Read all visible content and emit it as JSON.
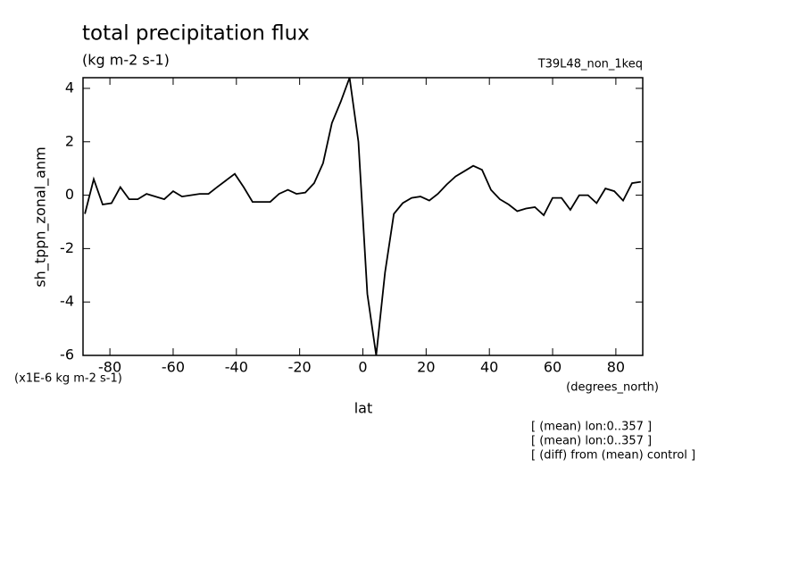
{
  "chart_data": {
    "type": "line",
    "title": "total precipitation flux",
    "subtitle": "(kg m-2 s-1)",
    "run_label": "T39L48_non_1keq",
    "ylabel": "sh_tppn_zonal_anm",
    "scale_label": "(x1E-6 kg m-2 s-1)",
    "xunits": "(degrees_north)",
    "xlabel": "lat",
    "annotations": [
      "[ (mean) lon:0..357 ]",
      "[ (mean) lon:0..357 ]",
      "[ (diff) from (mean) control ]"
    ],
    "x": [
      -87.9,
      -85.1,
      -82.3,
      -79.5,
      -76.7,
      -73.9,
      -71.2,
      -68.4,
      -65.6,
      -62.8,
      -60.0,
      -57.2,
      -54.4,
      -51.6,
      -48.8,
      -46.1,
      -43.3,
      -40.5,
      -37.7,
      -34.9,
      -32.1,
      -29.3,
      -26.5,
      -23.7,
      -21.0,
      -18.2,
      -15.4,
      -12.6,
      -9.8,
      -7.0,
      -4.2,
      -1.4,
      1.4,
      4.2,
      7.0,
      9.8,
      12.6,
      15.4,
      18.2,
      21.0,
      23.7,
      26.5,
      29.3,
      32.1,
      34.9,
      37.7,
      40.5,
      43.3,
      46.1,
      48.8,
      51.6,
      54.4,
      57.2,
      60.0,
      62.8,
      65.6,
      68.4,
      71.2,
      73.9,
      76.7,
      79.5,
      82.3,
      85.1,
      87.9
    ],
    "values": [
      -0.7,
      0.6,
      -0.35,
      -0.3,
      0.3,
      -0.15,
      -0.15,
      0.05,
      -0.05,
      -0.15,
      0.15,
      -0.05,
      0,
      0.05,
      0.05,
      0.3,
      0.55,
      0.8,
      0.3,
      -0.25,
      -0.25,
      -0.25,
      0.05,
      0.2,
      0.05,
      0.1,
      0.45,
      1.2,
      2.7,
      3.5,
      4.4,
      2.0,
      -3.7,
      -6.0,
      -2.9,
      -0.7,
      -0.3,
      -0.1,
      -0.05,
      -0.2,
      0.05,
      0.4,
      0.7,
      0.9,
      1.1,
      0.95,
      0.2,
      -0.15,
      -0.35,
      -0.6,
      -0.5,
      -0.45,
      -0.75,
      -0.1,
      -0.1,
      -0.55,
      0,
      0,
      -0.3,
      0.25,
      0.15,
      -0.2,
      0.45,
      0.5
    ],
    "color": "#000000",
    "xlim": [
      -88.5,
      88.5
    ],
    "xticks": [
      -80,
      -60,
      -40,
      -20,
      0,
      20,
      40,
      60,
      80
    ],
    "ylim": [
      -6,
      4.4
    ],
    "yticks": [
      -6,
      -4,
      -2,
      0,
      2,
      4
    ]
  }
}
